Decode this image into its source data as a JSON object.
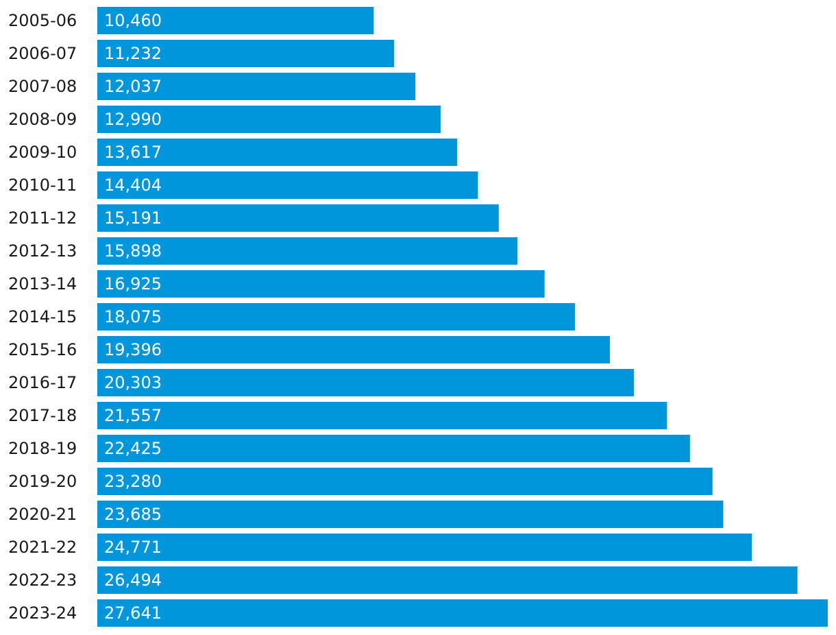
{
  "chart_data": {
    "type": "bar",
    "orientation": "horizontal",
    "categories": [
      "2005-06",
      "2006-07",
      "2007-08",
      "2008-09",
      "2009-10",
      "2010-11",
      "2011-12",
      "2012-13",
      "2013-14",
      "2014-15",
      "2015-16",
      "2016-17",
      "2017-18",
      "2018-19",
      "2019-20",
      "2020-21",
      "2021-22",
      "2022-23",
      "2023-24"
    ],
    "values": [
      10460,
      11232,
      12037,
      12990,
      13617,
      14404,
      15191,
      15898,
      16925,
      18075,
      19396,
      20303,
      21557,
      22425,
      23280,
      23685,
      24771,
      26494,
      27641
    ],
    "value_labels": [
      "10,460",
      "11,232",
      "12,037",
      "12,990",
      "13,617",
      "14,404",
      "15,191",
      "15,898",
      "16,925",
      "18,075",
      "19,396",
      "20,303",
      "21,557",
      "22,425",
      "23,280",
      "23,685",
      "24,771",
      "26,494",
      "27,641"
    ],
    "title": "",
    "xlabel": "",
    "ylabel": "",
    "xlim": [
      0,
      27641
    ],
    "grid": false,
    "legend": "none",
    "bar_color": "#0096db",
    "label_color": "#1a1a1a",
    "value_label_color": "#ffffff"
  }
}
